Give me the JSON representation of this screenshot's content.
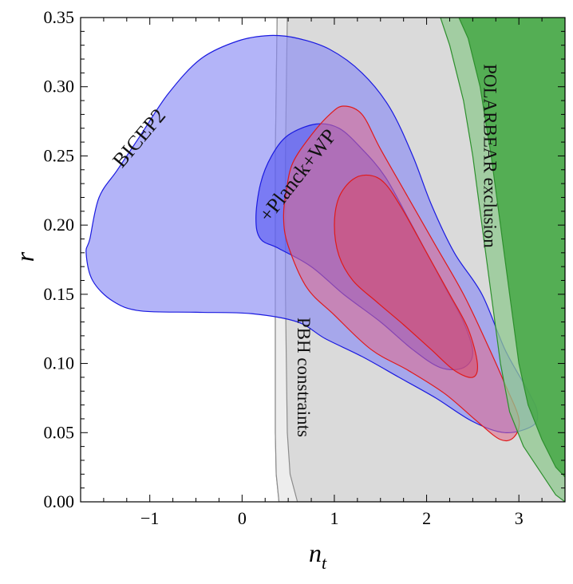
{
  "chart_data": {
    "type": "contour",
    "xlabel": "n",
    "xlabel_sub": "t",
    "ylabel": "r",
    "xlim": [
      -1.75,
      3.5
    ],
    "ylim": [
      0.0,
      0.35
    ],
    "x_ticks": [
      {
        "value": -1,
        "label": "−1"
      },
      {
        "value": 0,
        "label": "0"
      },
      {
        "value": 1,
        "label": "1"
      },
      {
        "value": 2,
        "label": "2"
      },
      {
        "value": 3,
        "label": "3"
      }
    ],
    "y_ticks": [
      {
        "value": 0.0,
        "label": "0.00"
      },
      {
        "value": 0.05,
        "label": "0.05"
      },
      {
        "value": 0.1,
        "label": "0.10"
      },
      {
        "value": 0.15,
        "label": "0.15"
      },
      {
        "value": 0.2,
        "label": "0.20"
      },
      {
        "value": 0.25,
        "label": "0.25"
      },
      {
        "value": 0.3,
        "label": "0.30"
      },
      {
        "value": 0.35,
        "label": "0.35"
      }
    ],
    "grid": false,
    "regions": [
      {
        "id": "pbh",
        "fill": "#d3d3d3",
        "stroke": "#8c8c8c",
        "opacity": 0.85,
        "points": [
          [
            0.38,
            0.35
          ],
          [
            0.37,
            0.3
          ],
          [
            0.36,
            0.25
          ],
          [
            0.36,
            0.2
          ],
          [
            0.36,
            0.15
          ],
          [
            0.36,
            0.1
          ],
          [
            0.36,
            0.05
          ],
          [
            0.37,
            0.02
          ],
          [
            0.4,
            0.0
          ],
          [
            3.5,
            0.0
          ],
          [
            3.5,
            0.35
          ]
        ]
      },
      {
        "id": "pbh-band",
        "fill": "#eeeeee",
        "stroke": "#8c8c8c",
        "opacity": 0.9,
        "points": [
          [
            0.38,
            0.35
          ],
          [
            0.37,
            0.3
          ],
          [
            0.36,
            0.25
          ],
          [
            0.36,
            0.2
          ],
          [
            0.36,
            0.15
          ],
          [
            0.36,
            0.1
          ],
          [
            0.36,
            0.05
          ],
          [
            0.37,
            0.02
          ],
          [
            0.4,
            0.0
          ],
          [
            0.6,
            0.0
          ],
          [
            0.52,
            0.02
          ],
          [
            0.49,
            0.05
          ],
          [
            0.48,
            0.1
          ],
          [
            0.47,
            0.15
          ],
          [
            0.47,
            0.2
          ],
          [
            0.47,
            0.25
          ],
          [
            0.48,
            0.3
          ],
          [
            0.49,
            0.35
          ]
        ]
      },
      {
        "id": "bicep2-95",
        "fill": "#8a8cf5",
        "stroke": "#1a1ae0",
        "opacity": 0.65,
        "points": [
          [
            -1.65,
            0.19
          ],
          [
            -1.55,
            0.22
          ],
          [
            -1.35,
            0.24
          ],
          [
            -1.1,
            0.265
          ],
          [
            -0.8,
            0.295
          ],
          [
            -0.45,
            0.32
          ],
          [
            -0.05,
            0.333
          ],
          [
            0.3,
            0.337
          ],
          [
            0.6,
            0.335
          ],
          [
            0.95,
            0.327
          ],
          [
            1.3,
            0.31
          ],
          [
            1.6,
            0.285
          ],
          [
            1.85,
            0.25
          ],
          [
            2.05,
            0.215
          ],
          [
            2.3,
            0.18
          ],
          [
            2.6,
            0.15
          ],
          [
            2.85,
            0.11
          ],
          [
            3.1,
            0.08
          ],
          [
            3.2,
            0.065
          ],
          [
            3.15,
            0.055
          ],
          [
            2.85,
            0.05
          ],
          [
            2.5,
            0.058
          ],
          [
            2.1,
            0.075
          ],
          [
            1.7,
            0.09
          ],
          [
            1.3,
            0.105
          ],
          [
            0.9,
            0.118
          ],
          [
            0.6,
            0.13
          ],
          [
            0.1,
            0.136
          ],
          [
            -0.5,
            0.137
          ],
          [
            -1.1,
            0.138
          ],
          [
            -1.4,
            0.145
          ],
          [
            -1.62,
            0.16
          ],
          [
            -1.69,
            0.18
          ]
        ]
      },
      {
        "id": "bicep2-68",
        "fill": "#4b4cf0",
        "stroke": "#1a1ae0",
        "opacity": 0.55,
        "points": [
          [
            0.15,
            0.205
          ],
          [
            0.2,
            0.23
          ],
          [
            0.32,
            0.25
          ],
          [
            0.5,
            0.265
          ],
          [
            0.8,
            0.273
          ],
          [
            1.05,
            0.27
          ],
          [
            1.3,
            0.255
          ],
          [
            1.55,
            0.235
          ],
          [
            1.8,
            0.205
          ],
          [
            2.0,
            0.18
          ],
          [
            2.2,
            0.155
          ],
          [
            2.4,
            0.13
          ],
          [
            2.5,
            0.108
          ],
          [
            2.4,
            0.097
          ],
          [
            2.15,
            0.097
          ],
          [
            1.85,
            0.11
          ],
          [
            1.5,
            0.13
          ],
          [
            1.1,
            0.15
          ],
          [
            0.75,
            0.17
          ],
          [
            0.4,
            0.183
          ],
          [
            0.2,
            0.19
          ]
        ]
      },
      {
        "id": "planck-95",
        "fill": "#e06a8c",
        "stroke": "#e01a1a",
        "opacity": 0.55,
        "points": [
          [
            0.48,
            0.225
          ],
          [
            0.55,
            0.245
          ],
          [
            0.75,
            0.265
          ],
          [
            0.95,
            0.28
          ],
          [
            1.1,
            0.286
          ],
          [
            1.3,
            0.28
          ],
          [
            1.5,
            0.255
          ],
          [
            1.8,
            0.22
          ],
          [
            2.1,
            0.185
          ],
          [
            2.4,
            0.15
          ],
          [
            2.65,
            0.115
          ],
          [
            2.85,
            0.085
          ],
          [
            3.0,
            0.06
          ],
          [
            2.95,
            0.047
          ],
          [
            2.8,
            0.045
          ],
          [
            2.55,
            0.058
          ],
          [
            2.2,
            0.078
          ],
          [
            1.8,
            0.095
          ],
          [
            1.4,
            0.11
          ],
          [
            1.0,
            0.135
          ],
          [
            0.7,
            0.155
          ],
          [
            0.5,
            0.185
          ],
          [
            0.45,
            0.205
          ]
        ]
      },
      {
        "id": "planck-68",
        "fill": "#d94a6a",
        "stroke": "#e01a1a",
        "opacity": 0.55,
        "points": [
          [
            1.0,
            0.2
          ],
          [
            1.05,
            0.22
          ],
          [
            1.2,
            0.233
          ],
          [
            1.38,
            0.236
          ],
          [
            1.55,
            0.23
          ],
          [
            1.75,
            0.21
          ],
          [
            2.0,
            0.18
          ],
          [
            2.25,
            0.15
          ],
          [
            2.45,
            0.125
          ],
          [
            2.55,
            0.1
          ],
          [
            2.5,
            0.09
          ],
          [
            2.3,
            0.095
          ],
          [
            2.05,
            0.11
          ],
          [
            1.75,
            0.128
          ],
          [
            1.45,
            0.145
          ],
          [
            1.2,
            0.16
          ],
          [
            1.05,
            0.178
          ]
        ]
      },
      {
        "id": "polarbear-light",
        "fill": "#8fc88f",
        "stroke": "#2d8f2d",
        "opacity": 0.75,
        "points": [
          [
            2.15,
            0.35
          ],
          [
            3.5,
            0.35
          ],
          [
            3.5,
            0.0
          ],
          [
            3.4,
            0.005
          ],
          [
            3.25,
            0.02
          ],
          [
            3.05,
            0.04
          ],
          [
            2.9,
            0.065
          ],
          [
            2.8,
            0.1
          ],
          [
            2.7,
            0.15
          ],
          [
            2.6,
            0.2
          ],
          [
            2.5,
            0.25
          ],
          [
            2.4,
            0.29
          ],
          [
            2.25,
            0.33
          ]
        ]
      },
      {
        "id": "polarbear-dark",
        "fill": "#46a846",
        "stroke": "#2d8f2d",
        "opacity": 0.85,
        "points": [
          [
            2.35,
            0.35
          ],
          [
            3.5,
            0.35
          ],
          [
            3.5,
            0.018
          ],
          [
            3.4,
            0.025
          ],
          [
            3.25,
            0.045
          ],
          [
            3.1,
            0.07
          ],
          [
            3.0,
            0.1
          ],
          [
            2.9,
            0.15
          ],
          [
            2.8,
            0.2
          ],
          [
            2.7,
            0.25
          ],
          [
            2.58,
            0.3
          ],
          [
            2.45,
            0.335
          ]
        ]
      }
    ],
    "annotations": [
      {
        "id": "bicep2",
        "text": "BICEP2",
        "x": -1.1,
        "y": 0.262,
        "angle": -50,
        "size": 26
      },
      {
        "id": "planck",
        "text": "+Planck+WP",
        "x": 0.62,
        "y": 0.235,
        "angle": -52,
        "size": 26
      },
      {
        "id": "pbh",
        "text": "PBH constraints",
        "x": 0.65,
        "y": 0.09,
        "angle": 90,
        "size": 23
      },
      {
        "id": "polarbear",
        "text": "POLARBEAR exclusion",
        "x": 2.67,
        "y": 0.25,
        "angle": 90,
        "size": 23
      }
    ]
  }
}
